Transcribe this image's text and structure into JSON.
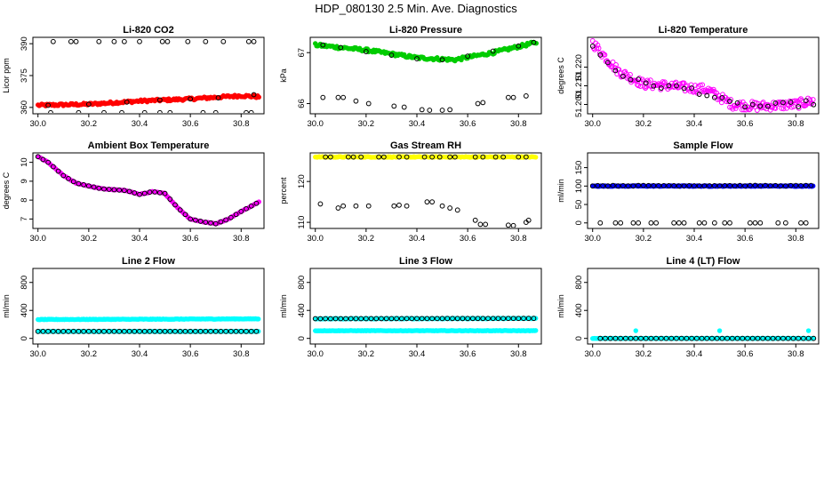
{
  "figure_title": "HDP_080130  2.5 Min. Ave. Diagnostics",
  "chart_data": [
    {
      "type": "scatter",
      "title": "Li-820 CO2",
      "ylabel": "Licor ppm",
      "xlim": [
        29.98,
        30.89
      ],
      "ylim": [
        357,
        393
      ],
      "xticks": [
        30.0,
        30.2,
        30.4,
        30.6,
        30.8
      ],
      "yticks": [
        360,
        375,
        390
      ],
      "series": [
        {
          "name": "main",
          "color": "#ff0000",
          "filled": true,
          "trend": [
            [
              30.0,
              361
            ],
            [
              30.2,
              361.5
            ],
            [
              30.4,
              363
            ],
            [
              30.6,
              364
            ],
            [
              30.8,
              365.5
            ],
            [
              30.87,
              365
            ]
          ],
          "noise": 0.6,
          "step": 0.005
        },
        {
          "name": "upper",
          "color": "#000000",
          "filled": false,
          "x": [
            30.06,
            30.13,
            30.15,
            30.24,
            30.3,
            30.34,
            30.4,
            30.49,
            30.51,
            30.59,
            30.66,
            30.73,
            30.83,
            30.85
          ],
          "y": [
            391,
            391,
            391,
            391,
            391,
            391,
            391,
            391,
            391,
            391,
            391,
            391,
            391,
            391
          ]
        },
        {
          "name": "lower",
          "color": "#000000",
          "filled": false,
          "x": [
            30.05,
            30.16,
            30.26,
            30.33,
            30.42,
            30.48,
            30.52,
            30.65,
            30.7,
            30.82,
            30.84
          ],
          "y": [
            357.5,
            357.5,
            357.5,
            357.5,
            357.5,
            357.5,
            357.5,
            357.5,
            357.5,
            357.5,
            357.5
          ]
        },
        {
          "name": "mid",
          "color": "#000000",
          "filled": false,
          "x": [
            30.04,
            30.2,
            30.35,
            30.48,
            30.6,
            30.71,
            30.85
          ],
          "y": [
            361,
            361.5,
            362.5,
            363.5,
            364,
            364.5,
            366
          ]
        }
      ]
    },
    {
      "type": "scatter",
      "title": "Li-820 Pressure",
      "ylabel": "kPa",
      "xlim": [
        29.98,
        30.89
      ],
      "ylim": [
        65.8,
        67.3
      ],
      "xticks": [
        30.0,
        30.2,
        30.4,
        30.6,
        30.8
      ],
      "yticks": [
        66.0,
        67.0
      ],
      "series": [
        {
          "name": "main",
          "color": "#00cc00",
          "filled": true,
          "trend": [
            [
              30.0,
              67.15
            ],
            [
              30.2,
              67.05
            ],
            [
              30.4,
              66.9
            ],
            [
              30.55,
              66.86
            ],
            [
              30.7,
              67.0
            ],
            [
              30.87,
              67.2
            ]
          ],
          "noise": 0.03,
          "step": 0.005
        },
        {
          "name": "ring",
          "color": "#000000",
          "filled": false,
          "x": [
            30.03,
            30.1,
            30.2,
            30.3,
            30.4,
            30.5,
            30.6,
            30.7,
            30.8,
            30.86
          ],
          "y": [
            67.15,
            67.1,
            67.02,
            66.95,
            66.88,
            66.86,
            66.93,
            67.03,
            67.13,
            67.2
          ]
        },
        {
          "name": "low",
          "color": "#000000",
          "filled": false,
          "x": [
            30.03,
            30.09,
            30.11,
            30.16,
            30.21,
            30.31,
            30.35,
            30.42,
            30.45,
            30.5,
            30.53,
            30.64,
            30.66,
            30.76,
            30.78,
            30.83
          ],
          "y": [
            66.12,
            66.12,
            66.12,
            66.05,
            66.0,
            65.95,
            65.93,
            65.88,
            65.87,
            65.87,
            65.88,
            66.0,
            66.02,
            66.12,
            66.12,
            66.15
          ]
        }
      ]
    },
    {
      "type": "scatter",
      "title": "Li-820 Temperature",
      "ylabel": "degrees C",
      "xlim": [
        29.98,
        30.89
      ],
      "ylim": [
        51.195,
        51.236
      ],
      "xticks": [
        30.0,
        30.2,
        30.4,
        30.6,
        30.8
      ],
      "yticks": [
        51.2,
        51.21,
        51.22
      ],
      "yticklabels": [
        "51.200",
        "51.210",
        "51.220"
      ],
      "series": [
        {
          "name": "main",
          "color": "#ff00ff",
          "filled": false,
          "trend": [
            [
              30.0,
              51.233
            ],
            [
              30.1,
              51.218
            ],
            [
              30.2,
              51.211
            ],
            [
              30.3,
              51.21
            ],
            [
              30.45,
              51.208
            ],
            [
              30.55,
              51.2
            ],
            [
              30.65,
              51.199
            ],
            [
              30.8,
              51.2
            ],
            [
              30.87,
              51.202
            ]
          ],
          "noise": 0.0025,
          "step": 0.004
        },
        {
          "name": "dark",
          "color": "#000000",
          "filled": false,
          "trend": [
            [
              30.0,
              51.231
            ],
            [
              30.1,
              51.217
            ],
            [
              30.2,
              51.211
            ],
            [
              30.4,
              51.208
            ],
            [
              30.55,
              51.2
            ],
            [
              30.7,
              51.199
            ],
            [
              30.87,
              51.201
            ]
          ],
          "noise": 0.0015,
          "step": 0.03
        }
      ]
    },
    {
      "type": "scatter",
      "title": "Ambient Box Temperature",
      "ylabel": "degrees C",
      "xlim": [
        29.98,
        30.89
      ],
      "ylim": [
        6.5,
        10.5
      ],
      "xticks": [
        30.0,
        30.2,
        30.4,
        30.6,
        30.8
      ],
      "yticks": [
        7,
        8,
        9,
        10
      ],
      "series": [
        {
          "name": "main",
          "color": "#ff00ff",
          "filled": true,
          "trend": [
            [
              30.0,
              10.3
            ],
            [
              30.04,
              10.0
            ],
            [
              30.1,
              9.3
            ],
            [
              30.15,
              8.9
            ],
            [
              30.25,
              8.6
            ],
            [
              30.35,
              8.5
            ],
            [
              30.4,
              8.3
            ],
            [
              30.45,
              8.45
            ],
            [
              30.5,
              8.35
            ],
            [
              30.55,
              7.6
            ],
            [
              30.6,
              7.0
            ],
            [
              30.65,
              6.85
            ],
            [
              30.7,
              6.75
            ],
            [
              30.75,
              7.0
            ],
            [
              30.8,
              7.4
            ],
            [
              30.87,
              7.9
            ]
          ],
          "noise": 0.02,
          "step": 0.005
        },
        {
          "name": "ring",
          "color": "#000000",
          "filled": false,
          "trend": [
            [
              30.0,
              10.3
            ],
            [
              30.04,
              10.0
            ],
            [
              30.1,
              9.3
            ],
            [
              30.15,
              8.9
            ],
            [
              30.25,
              8.6
            ],
            [
              30.35,
              8.5
            ],
            [
              30.4,
              8.3
            ],
            [
              30.45,
              8.45
            ],
            [
              30.5,
              8.35
            ],
            [
              30.55,
              7.6
            ],
            [
              30.6,
              7.0
            ],
            [
              30.65,
              6.85
            ],
            [
              30.7,
              6.75
            ],
            [
              30.75,
              7.0
            ],
            [
              30.8,
              7.4
            ],
            [
              30.87,
              7.9
            ]
          ],
          "noise": 0.0,
          "step": 0.02
        }
      ]
    },
    {
      "type": "scatter",
      "title": "Gas Stream RH",
      "ylabel": "percent",
      "xlim": [
        29.98,
        30.89
      ],
      "ylim": [
        108.5,
        127
      ],
      "xticks": [
        30.0,
        30.2,
        30.4,
        30.6,
        30.8
      ],
      "yticks": [
        110,
        120
      ],
      "series": [
        {
          "name": "main",
          "color": "#ffff00",
          "filled": true,
          "trend": [
            [
              30.0,
              126
            ],
            [
              30.87,
              126
            ]
          ],
          "noise": 0.1,
          "step": 0.004
        },
        {
          "name": "top",
          "color": "#000000",
          "filled": false,
          "x": [
            30.04,
            30.06,
            30.13,
            30.15,
            30.18,
            30.25,
            30.27,
            30.33,
            30.36,
            30.43,
            30.46,
            30.49,
            30.53,
            30.55,
            30.63,
            30.66,
            30.71,
            30.74,
            30.8,
            30.83
          ],
          "y": [
            126,
            126,
            126,
            126,
            126,
            126,
            126,
            126,
            126,
            126,
            126,
            126,
            126,
            126,
            126,
            126,
            126,
            126,
            126,
            126
          ]
        },
        {
          "name": "low",
          "color": "#000000",
          "filled": false,
          "x": [
            30.02,
            30.09,
            30.11,
            30.16,
            30.21,
            30.31,
            30.33,
            30.36,
            30.44,
            30.46,
            30.5,
            30.53,
            30.56,
            30.63,
            30.65,
            30.67,
            30.76,
            30.78,
            30.83,
            30.84
          ],
          "y": [
            114.5,
            113.5,
            114,
            114,
            114,
            114,
            114.2,
            114,
            115,
            115,
            114,
            113.5,
            113,
            110.5,
            109.5,
            109.5,
            109.3,
            109.2,
            110,
            110.5
          ]
        }
      ]
    },
    {
      "type": "scatter",
      "title": "Sample Flow",
      "ylabel": "ml/min",
      "xlim": [
        29.98,
        30.89
      ],
      "ylim": [
        -15,
        190
      ],
      "xticks": [
        30.0,
        30.2,
        30.4,
        30.6,
        30.8
      ],
      "yticks": [
        0,
        50,
        100,
        150
      ],
      "series": [
        {
          "name": "main",
          "color": "#0000ff",
          "filled": true,
          "trend": [
            [
              30.0,
              100
            ],
            [
              30.87,
              100
            ]
          ],
          "noise": 1.0,
          "step": 0.004
        },
        {
          "name": "ring",
          "color": "#000000",
          "filled": false,
          "trend": [
            [
              30.0,
              101
            ],
            [
              30.87,
              101
            ]
          ],
          "noise": 0.8,
          "step": 0.02
        },
        {
          "name": "zero",
          "color": "#000000",
          "filled": false,
          "x": [
            30.03,
            30.09,
            30.11,
            30.16,
            30.18,
            30.23,
            30.25,
            30.32,
            30.34,
            30.36,
            30.42,
            30.44,
            30.48,
            30.52,
            30.54,
            30.62,
            30.64,
            30.66,
            30.73,
            30.76,
            30.82,
            30.84
          ],
          "y": [
            0,
            0,
            0,
            0,
            0,
            0,
            0,
            0,
            0,
            0,
            0,
            0,
            0,
            0,
            0,
            0,
            0,
            0,
            0,
            0,
            0,
            0
          ]
        }
      ]
    },
    {
      "type": "scatter",
      "title": "Line 2 Flow",
      "ylabel": "ml/min",
      "xlim": [
        29.98,
        30.89
      ],
      "ylim": [
        -80,
        1000
      ],
      "xticks": [
        30.0,
        30.2,
        30.4,
        30.6,
        30.8
      ],
      "yticks": [
        0,
        400,
        800
      ],
      "series": [
        {
          "name": "upper",
          "color": "#00ffff",
          "filled": true,
          "trend": [
            [
              30.0,
              270
            ],
            [
              30.5,
              275
            ],
            [
              30.87,
              280
            ]
          ],
          "noise": 4,
          "step": 0.004
        },
        {
          "name": "lower",
          "color": "#00ffff",
          "filled": true,
          "trend": [
            [
              30.0,
              100
            ],
            [
              30.87,
              100
            ]
          ],
          "noise": 3,
          "step": 0.004
        },
        {
          "name": "ring",
          "color": "#000000",
          "filled": false,
          "trend": [
            [
              30.0,
              100
            ],
            [
              30.87,
              100
            ]
          ],
          "noise": 0,
          "step": 0.02
        }
      ]
    },
    {
      "type": "scatter",
      "title": "Line 3 Flow",
      "ylabel": "ml/min",
      "xlim": [
        29.98,
        30.89
      ],
      "ylim": [
        -80,
        1000
      ],
      "xticks": [
        30.0,
        30.2,
        30.4,
        30.6,
        30.8
      ],
      "yticks": [
        0,
        400,
        800
      ],
      "series": [
        {
          "name": "upper",
          "color": "#00ffff",
          "filled": true,
          "trend": [
            [
              30.0,
              280
            ],
            [
              30.87,
              285
            ]
          ],
          "noise": 4,
          "step": 0.004
        },
        {
          "name": "lower",
          "color": "#00ffff",
          "filled": true,
          "trend": [
            [
              30.0,
              110
            ],
            [
              30.87,
              110
            ]
          ],
          "noise": 3,
          "step": 0.004
        },
        {
          "name": "ring",
          "color": "#000000",
          "filled": false,
          "trend": [
            [
              30.0,
              282
            ],
            [
              30.87,
              286
            ]
          ],
          "noise": 0,
          "step": 0.02
        }
      ]
    },
    {
      "type": "scatter",
      "title": "Line 4 (LT) Flow",
      "ylabel": "ml/min",
      "xlim": [
        29.98,
        30.89
      ],
      "ylim": [
        -80,
        1000
      ],
      "xticks": [
        30.0,
        30.2,
        30.4,
        30.6,
        30.8
      ],
      "yticks": [
        0,
        400,
        800
      ],
      "series": [
        {
          "name": "main",
          "color": "#00ffff",
          "filled": true,
          "trend": [
            [
              30.0,
              0
            ],
            [
              30.87,
              0
            ]
          ],
          "noise": 2,
          "step": 0.004
        },
        {
          "name": "spikes",
          "color": "#00ffff",
          "filled": true,
          "x": [
            30.17,
            30.5,
            30.85
          ],
          "y": [
            110,
            110,
            110
          ]
        },
        {
          "name": "ring",
          "color": "#000000",
          "filled": false,
          "trend": [
            [
              30.03,
              0
            ],
            [
              30.87,
              0
            ]
          ],
          "noise": 0,
          "step": 0.02
        }
      ]
    }
  ]
}
